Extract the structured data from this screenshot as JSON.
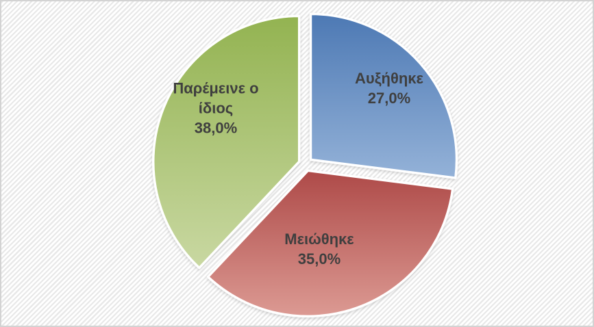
{
  "page": {
    "background_pattern": "transparency-checkerboard",
    "pattern_gray": "#e8e8e8",
    "border_color": "#d3d3d3",
    "label_text_color": "#3f3f3f"
  },
  "chart_data": {
    "type": "pie",
    "title": "",
    "legend": "none",
    "unit": "%",
    "decimal_separator": ",",
    "start_angle_deg": 0,
    "direction": "clockwise",
    "categories": [
      "Αυξήθηκε",
      "Μειώθηκε",
      "Παρέμεινε ο ίδιος"
    ],
    "values": [
      27.0,
      35.0,
      38.0
    ],
    "slices": [
      {
        "label": "Αυξήθηκε",
        "value": 27.0,
        "pct_label": "27,0%",
        "color_top": "#4d79b4",
        "color_bottom": "#94b2d8"
      },
      {
        "label": "Μειώθηκε",
        "value": 35.0,
        "pct_label": "35,0%",
        "color_top": "#ae4a48",
        "color_bottom": "#dc9a93"
      },
      {
        "label": "Παρέμεινε ο ίδιος",
        "value": 38.0,
        "pct_label": "38,0%",
        "color_top": "#93b351",
        "color_bottom": "#c9d8a2"
      }
    ]
  }
}
